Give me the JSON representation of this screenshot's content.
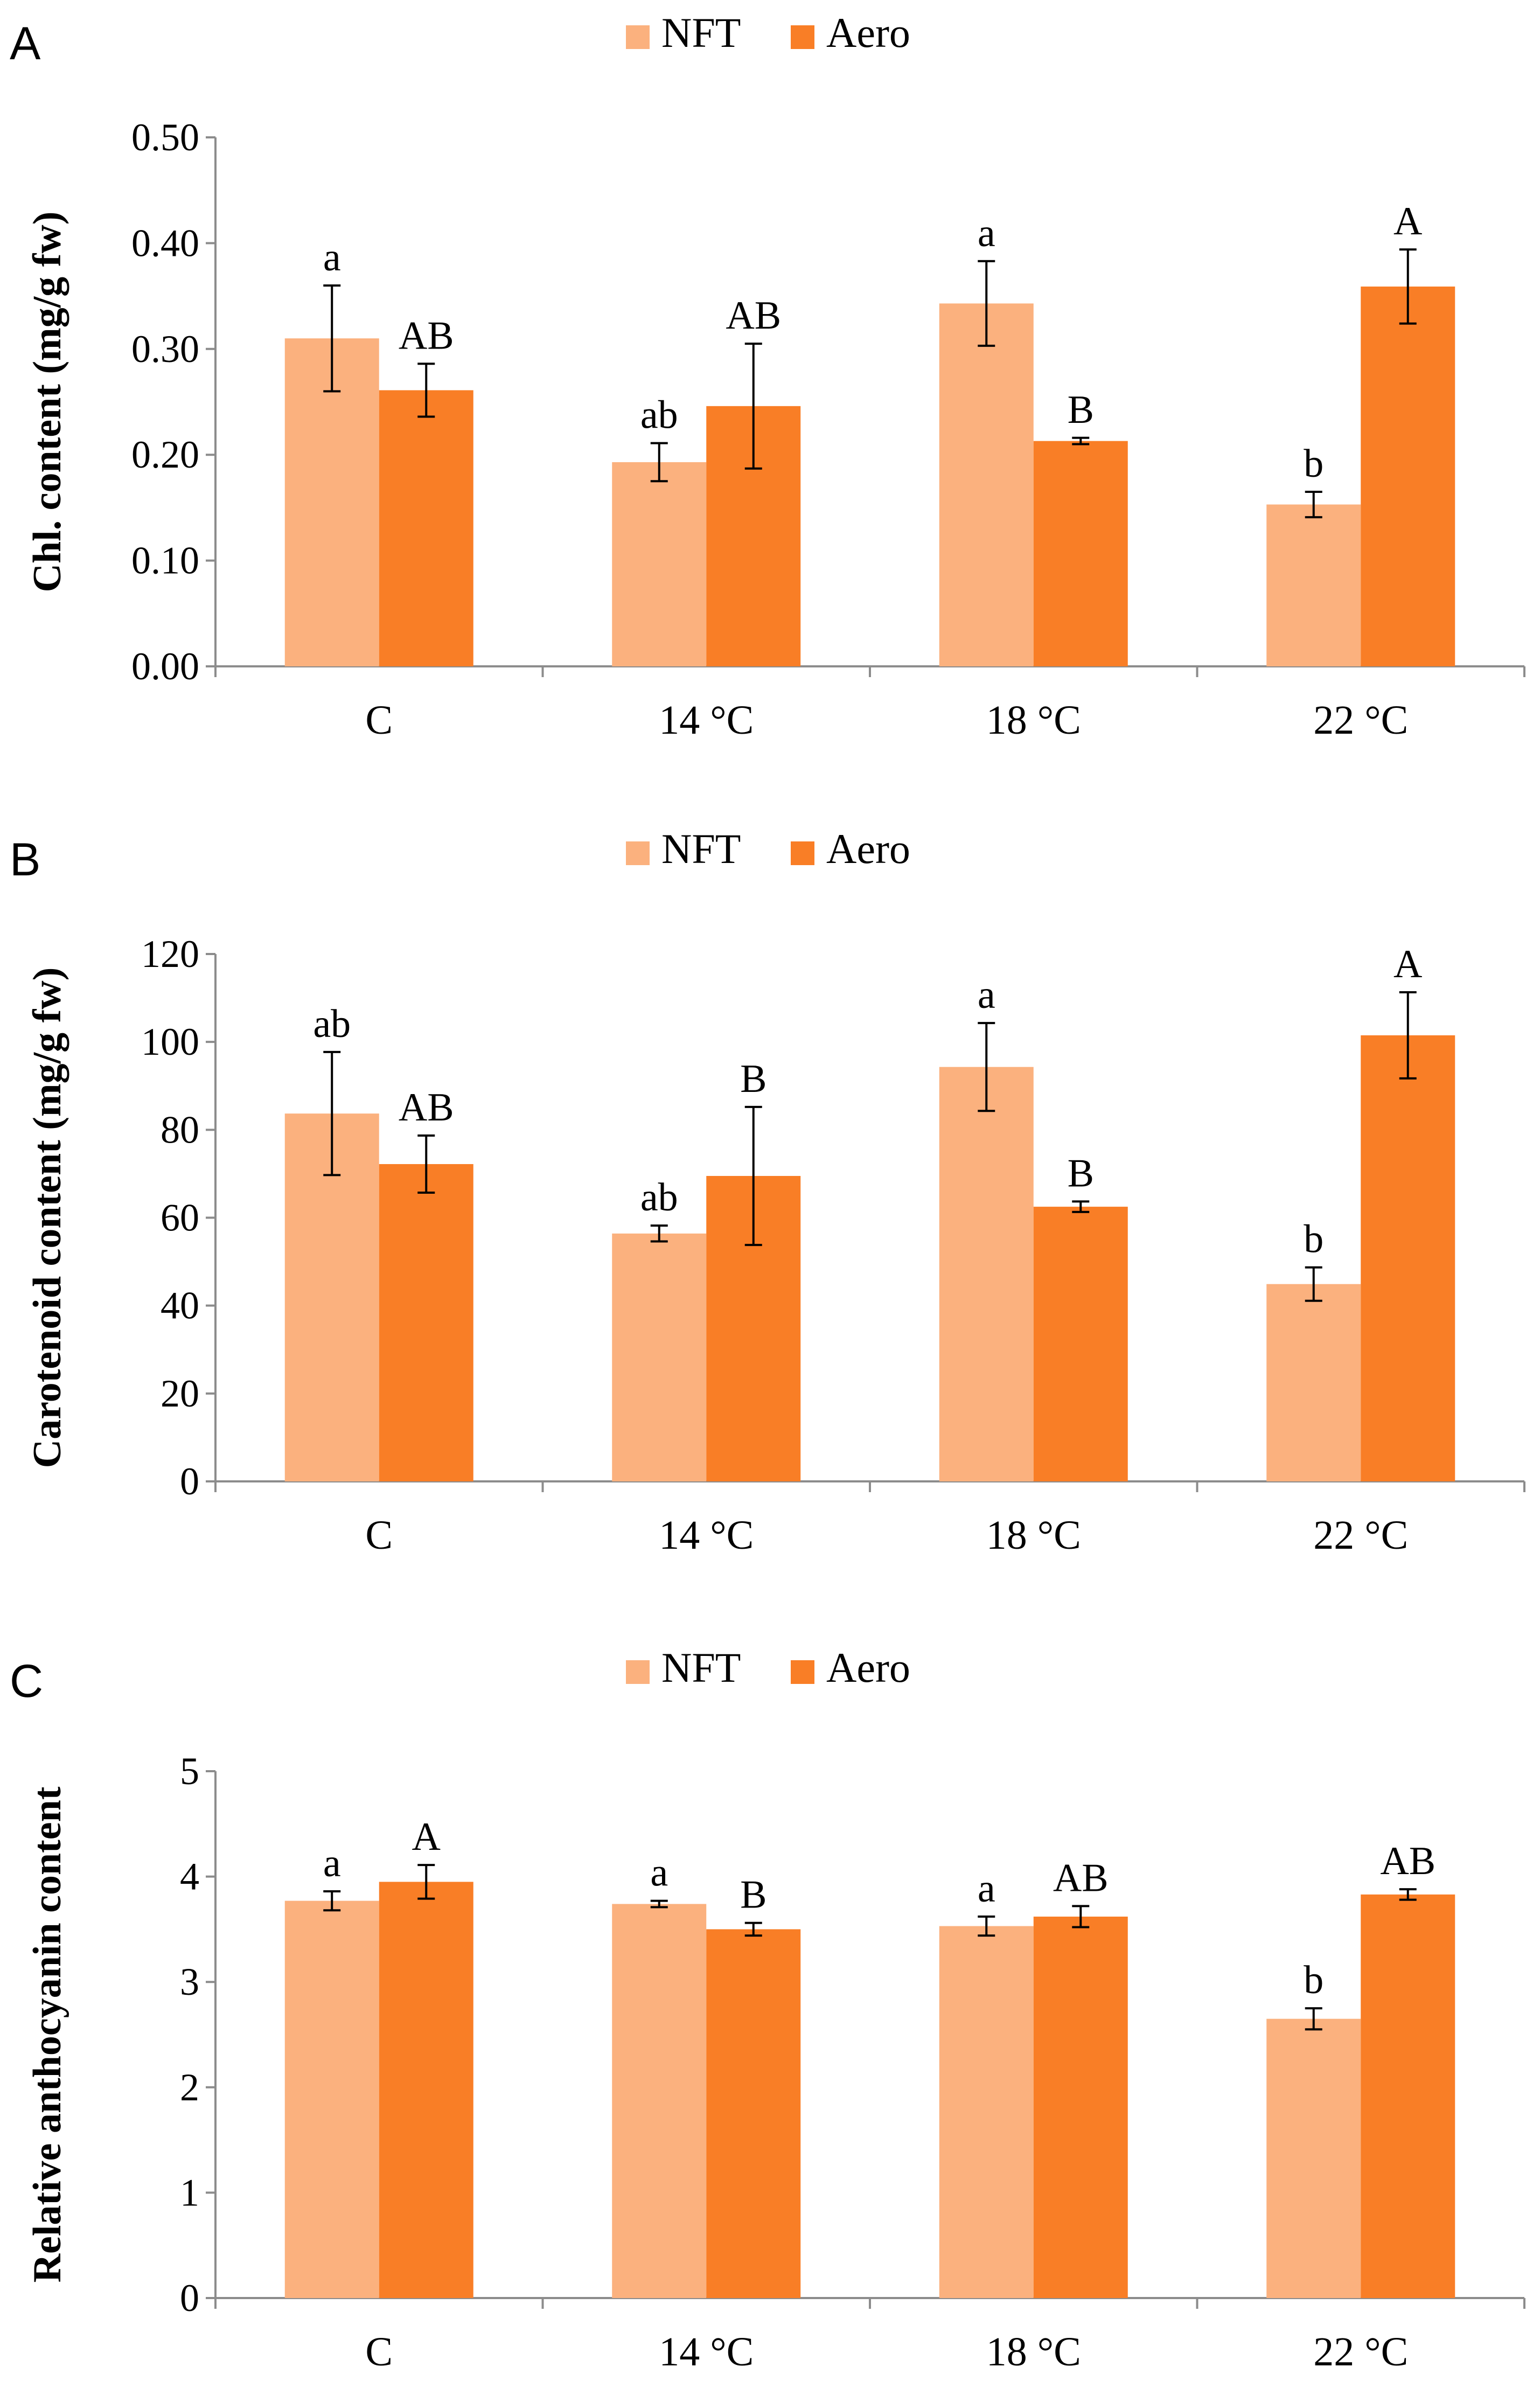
{
  "figure": {
    "legend": [
      {
        "name": "NFT",
        "color": "#FBB17E"
      },
      {
        "name": "Aero",
        "color": "#F97E26"
      }
    ]
  },
  "chart_data": [
    {
      "type": "bar",
      "panel": "A",
      "categories": [
        "C",
        "14 °C",
        "18 °C",
        "22 °C"
      ],
      "ylabel": "Chl. content (mg/g fw)",
      "ylim": [
        0,
        0.5
      ],
      "yticks": [
        "0.00",
        "0.10",
        "0.20",
        "0.30",
        "0.40",
        "0.50"
      ],
      "series": [
        {
          "name": "NFT",
          "values": [
            0.31,
            0.193,
            0.343,
            0.153
          ],
          "errors": [
            0.05,
            0.018,
            0.04,
            0.012
          ],
          "labels": [
            "a",
            "ab",
            "a",
            "b"
          ]
        },
        {
          "name": "Aero",
          "values": [
            0.261,
            0.246,
            0.213,
            0.359
          ],
          "errors": [
            0.025,
            0.059,
            0.003,
            0.035
          ],
          "labels": [
            "AB",
            "AB",
            "B",
            "A"
          ]
        }
      ]
    },
    {
      "type": "bar",
      "panel": "B",
      "categories": [
        "C",
        "14 °C",
        "18 °C",
        "22 °C"
      ],
      "ylabel": "Carotenoid content (mg/g fw)",
      "ylim": [
        0,
        120
      ],
      "yticks": [
        "0",
        "20",
        "40",
        "60",
        "80",
        "100",
        "120"
      ],
      "series": [
        {
          "name": "NFT",
          "values": [
            83.7,
            56.4,
            94.3,
            44.9
          ],
          "errors": [
            14,
            1.8,
            10,
            3.8
          ],
          "labels": [
            "ab",
            "ab",
            "a",
            "b"
          ]
        },
        {
          "name": "Aero",
          "values": [
            72.2,
            69.5,
            62.5,
            101.5
          ],
          "errors": [
            6.5,
            15.7,
            1.2,
            9.8
          ],
          "labels": [
            "AB",
            "B",
            "B",
            "A"
          ]
        }
      ]
    },
    {
      "type": "bar",
      "panel": "C",
      "categories": [
        "C",
        "14 °C",
        "18 °C",
        "22 °C"
      ],
      "ylabel": "Relative anthocyanin content",
      "ylim": [
        0,
        5
      ],
      "yticks": [
        "0",
        "1",
        "2",
        "3",
        "4",
        "5"
      ],
      "series": [
        {
          "name": "NFT",
          "values": [
            3.77,
            3.74,
            3.53,
            2.65
          ],
          "errors": [
            0.09,
            0.03,
            0.09,
            0.1
          ],
          "labels": [
            "a",
            "a",
            "a",
            "b"
          ]
        },
        {
          "name": "Aero",
          "values": [
            3.95,
            3.5,
            3.62,
            3.83
          ],
          "errors": [
            0.16,
            0.06,
            0.1,
            0.05
          ],
          "labels": [
            "A",
            "B",
            "AB",
            "AB"
          ]
        }
      ]
    }
  ]
}
